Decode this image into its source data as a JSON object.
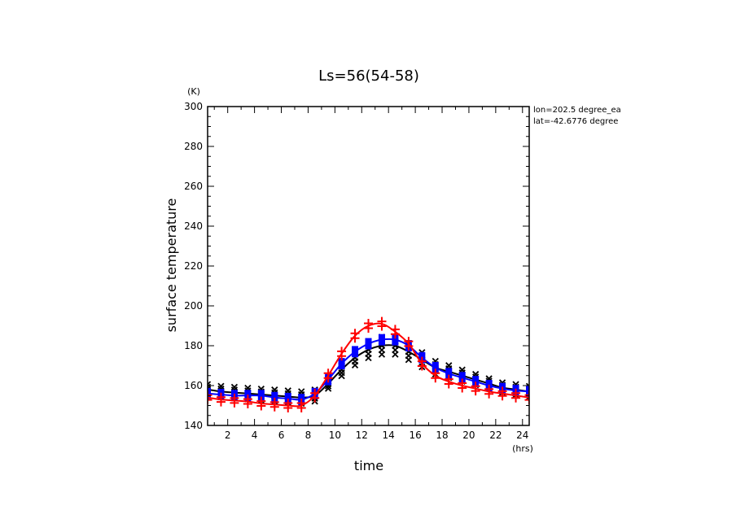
{
  "chart_data": {
    "type": "line",
    "title": "Ls=56(54-58)",
    "xlabel": "time",
    "ylabel": "surface temperature",
    "x_unit": "(hrs)",
    "y_unit": "(K)",
    "xlim": [
      0.5,
      24.5
    ],
    "ylim": [
      140,
      300
    ],
    "x_ticks": [
      2,
      4,
      6,
      8,
      10,
      12,
      14,
      16,
      18,
      20,
      22,
      24
    ],
    "y_ticks": [
      140,
      160,
      180,
      200,
      220,
      240,
      260,
      280,
      300
    ],
    "annotations": [
      "lon=202.5 degree_ea",
      "lat=-42.6776 degree"
    ],
    "grid": false,
    "x": [
      0.5,
      1.5,
      2.5,
      3.5,
      4.5,
      5.5,
      6.5,
      7.5,
      8.5,
      9.5,
      10.5,
      11.5,
      12.5,
      13.5,
      14.5,
      15.5,
      16.5,
      17.5,
      18.5,
      19.5,
      20.5,
      21.5,
      22.5,
      23.5,
      24.5
    ],
    "series": [
      {
        "color": "#000000",
        "marker": "x",
        "values": [
          158,
          157,
          156.5,
          156,
          155.5,
          155,
          154.5,
          154,
          155,
          161,
          168,
          174,
          178,
          180,
          180,
          177,
          173,
          169,
          167,
          165,
          163,
          161,
          159,
          158,
          157
        ],
        "scatter_offsets": [
          -3,
          -1.5,
          0,
          1.5,
          3
        ]
      },
      {
        "color": "#0000ff",
        "marker": "square",
        "values": [
          156,
          155.5,
          155,
          155,
          155,
          154,
          153.5,
          153,
          156,
          163,
          171,
          177,
          181,
          183,
          183,
          180,
          174,
          169,
          166,
          164,
          162,
          160,
          158.5,
          157.5,
          157
        ]
      },
      {
        "color": "#ff0000",
        "marker": "plus",
        "values": [
          154,
          153,
          152.5,
          152,
          151,
          150.5,
          150,
          150,
          155,
          165,
          176,
          185,
          190,
          191,
          187,
          181,
          171,
          165,
          162,
          160,
          158.5,
          157,
          156,
          155,
          154
        ]
      }
    ]
  }
}
